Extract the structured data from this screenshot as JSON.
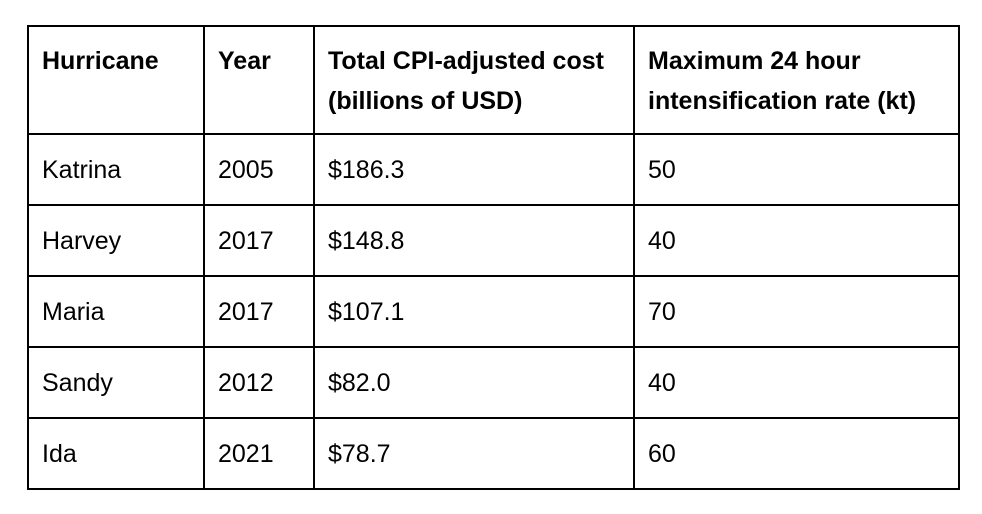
{
  "page": {
    "background_color": "#ffffff",
    "border_color": "#000000",
    "text_color": "#000000"
  },
  "table": {
    "headers": [
      {
        "label": "Hurricane"
      },
      {
        "label": "Year"
      },
      {
        "label": "Total CPI-adjusted cost (billions of USD)"
      },
      {
        "label": "Maximum 24 hour intensification rate (kt)"
      }
    ],
    "rows": [
      {
        "hurricane": "Katrina",
        "year": "2005",
        "cost": "$186.3",
        "rate": "50"
      },
      {
        "hurricane": "Harvey",
        "year": "2017",
        "cost": "$148.8",
        "rate": "40"
      },
      {
        "hurricane": "Maria",
        "year": "2017",
        "cost": "$107.1",
        "rate": "70"
      },
      {
        "hurricane": "Sandy",
        "year": "2012",
        "cost": "$82.0",
        "rate": "40"
      },
      {
        "hurricane": "Ida",
        "year": "2021",
        "cost": "$78.7",
        "rate": "60"
      }
    ]
  },
  "chart_data": {
    "type": "table",
    "title": "",
    "columns": [
      "Hurricane",
      "Year",
      "Total CPI-adjusted cost (billions of USD)",
      "Maximum 24 hour intensification rate (kt)"
    ],
    "rows": [
      [
        "Katrina",
        2005,
        186.3,
        50
      ],
      [
        "Harvey",
        2017,
        148.8,
        40
      ],
      [
        "Maria",
        2017,
        107.1,
        70
      ],
      [
        "Sandy",
        2012,
        82.0,
        40
      ],
      [
        "Ida",
        2021,
        78.7,
        60
      ]
    ]
  }
}
